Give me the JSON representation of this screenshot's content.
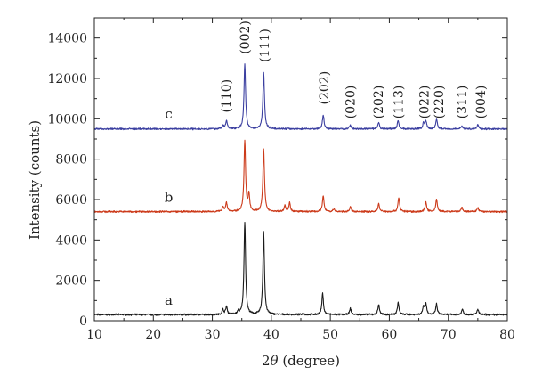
{
  "chart_data": {
    "type": "line",
    "xlabel_prefix": "2",
    "xlabel_symbol": "θ",
    "xlabel_suffix": " (degree)",
    "ylabel": "Intensity (counts)",
    "xlim": [
      10,
      80
    ],
    "ylim": [
      0,
      15000
    ],
    "xticks": [
      10,
      20,
      30,
      40,
      50,
      60,
      70,
      80
    ],
    "yticks": [
      0,
      2000,
      4000,
      6000,
      8000,
      10000,
      12000,
      14000
    ],
    "grid": false,
    "series": [
      {
        "name": "a",
        "color": "#1a1a1a",
        "baseline": 300,
        "label_at": [
          22.6,
          800
        ],
        "peaks": [
          {
            "x": 31.8,
            "h": 250
          },
          {
            "x": 32.4,
            "h": 400
          },
          {
            "x": 34.4,
            "h": 150
          },
          {
            "x": 35.5,
            "h": 4600
          },
          {
            "x": 38.7,
            "h": 4100
          },
          {
            "x": 45.4,
            "h": 60
          },
          {
            "x": 48.7,
            "h": 1050
          },
          {
            "x": 53.4,
            "h": 300
          },
          {
            "x": 58.2,
            "h": 500
          },
          {
            "x": 61.5,
            "h": 600
          },
          {
            "x": 65.8,
            "h": 420
          },
          {
            "x": 66.2,
            "h": 520
          },
          {
            "x": 68.0,
            "h": 520
          },
          {
            "x": 72.4,
            "h": 270
          },
          {
            "x": 75.0,
            "h": 270
          }
        ]
      },
      {
        "name": "b",
        "color": "#cc3a1a",
        "baseline": 5400,
        "label_at": [
          22.6,
          5880
        ],
        "peaks": [
          {
            "x": 31.8,
            "h": 250
          },
          {
            "x": 32.4,
            "h": 450
          },
          {
            "x": 35.5,
            "h": 3500
          },
          {
            "x": 36.2,
            "h": 850
          },
          {
            "x": 38.7,
            "h": 3100
          },
          {
            "x": 42.3,
            "h": 320
          },
          {
            "x": 43.1,
            "h": 430
          },
          {
            "x": 48.8,
            "h": 800
          },
          {
            "x": 50.6,
            "h": 130
          },
          {
            "x": 53.4,
            "h": 230
          },
          {
            "x": 58.2,
            "h": 380
          },
          {
            "x": 61.6,
            "h": 700
          },
          {
            "x": 66.2,
            "h": 480
          },
          {
            "x": 68.0,
            "h": 620
          },
          {
            "x": 72.3,
            "h": 200
          },
          {
            "x": 75.0,
            "h": 200
          }
        ]
      },
      {
        "name": "c",
        "color": "#3b3fa0",
        "baseline": 9500,
        "label_at": [
          22.6,
          10020
        ],
        "peaks": [
          {
            "x": 31.8,
            "h": 180
          },
          {
            "x": 32.4,
            "h": 400
          },
          {
            "x": 35.5,
            "h": 3200
          },
          {
            "x": 38.7,
            "h": 2800
          },
          {
            "x": 48.8,
            "h": 700
          },
          {
            "x": 53.4,
            "h": 200
          },
          {
            "x": 58.2,
            "h": 300
          },
          {
            "x": 61.5,
            "h": 420
          },
          {
            "x": 65.8,
            "h": 280
          },
          {
            "x": 66.2,
            "h": 380
          },
          {
            "x": 68.0,
            "h": 480
          },
          {
            "x": 72.3,
            "h": 160
          },
          {
            "x": 75.0,
            "h": 210
          }
        ]
      }
    ],
    "annotations": [
      {
        "text": "(110)",
        "x": 32.3,
        "y": 10300
      },
      {
        "text": "(002)",
        "x": 35.5,
        "y": 13200
      },
      {
        "text": "(111)",
        "x": 38.8,
        "y": 12800
      },
      {
        "text": "(202)",
        "x": 48.9,
        "y": 10700
      },
      {
        "text": "(020)",
        "x": 53.4,
        "y": 10000
      },
      {
        "text": "(202)",
        "x": 58.1,
        "y": 10000
      },
      {
        "text": "(113)",
        "x": 61.5,
        "y": 10000
      },
      {
        "text": "(022)",
        "x": 65.9,
        "y": 10000
      },
      {
        "text": "(220)",
        "x": 68.4,
        "y": 10000
      },
      {
        "text": "(311)",
        "x": 72.3,
        "y": 10000
      },
      {
        "text": "(004)",
        "x": 75.5,
        "y": 10000
      }
    ]
  }
}
